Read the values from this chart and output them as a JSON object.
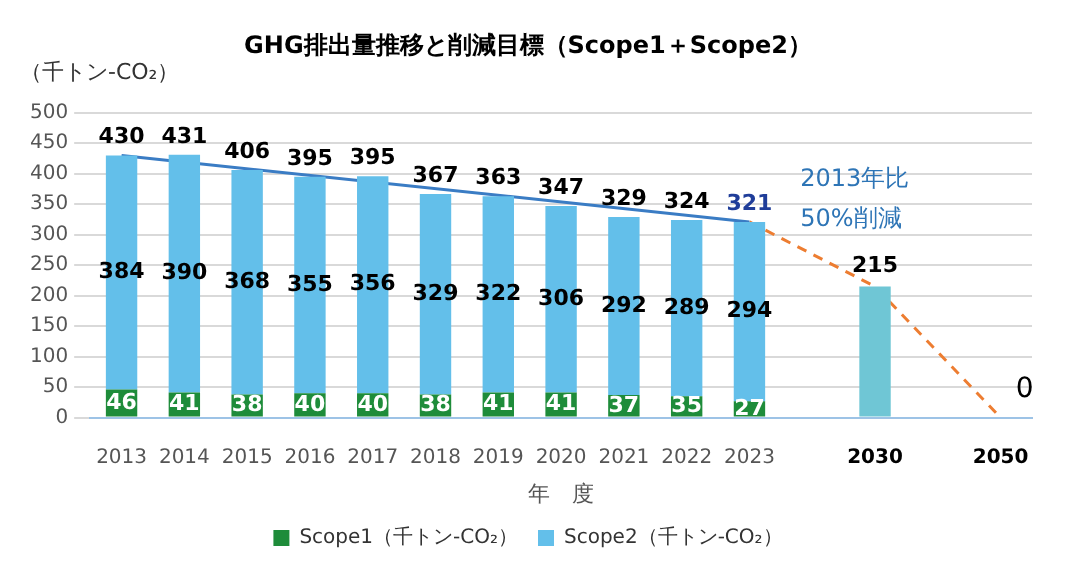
{
  "chart_data": {
    "type": "bar",
    "title": "GHG排出量推移と削減目標（Scope1＋Scope2）",
    "ylabel": "（千トン-CO₂）",
    "xlabel": "年　度",
    "categories": [
      "2013",
      "2014",
      "2015",
      "2016",
      "2017",
      "2018",
      "2019",
      "2020",
      "2021",
      "2022",
      "2023",
      null,
      "2030",
      null,
      "2050"
    ],
    "stacked": true,
    "ylim": [
      0,
      500
    ],
    "yticks": [
      0,
      50,
      100,
      150,
      200,
      250,
      300,
      350,
      400,
      450,
      500
    ],
    "grid": "y",
    "legend": "bottom",
    "marker": "none",
    "series": [
      {
        "name": "Scope1（千トン-CO₂）",
        "color": "#1e8c3a",
        "values": [
          46,
          41,
          38,
          40,
          40,
          38,
          41,
          41,
          37,
          35,
          27,
          null,
          null,
          null,
          null
        ],
        "value_labels": [
          "46",
          "41",
          "38",
          "40",
          "40",
          "38",
          "41",
          "41",
          "37",
          "35",
          "27",
          null,
          null,
          null,
          null
        ]
      },
      {
        "name": "Scope2（千トン-CO₂）",
        "color": "#63bfea",
        "values": [
          384,
          390,
          368,
          355,
          356,
          329,
          322,
          306,
          292,
          289,
          294,
          null,
          null,
          null,
          null
        ],
        "value_labels": [
          "384",
          "390",
          "368",
          "355",
          "356",
          "329",
          "322",
          "306",
          "292",
          "289",
          "294",
          null,
          null,
          null,
          null
        ]
      },
      {
        "color": "#6fc6d5",
        "values": [
          null,
          null,
          null,
          null,
          null,
          null,
          null,
          null,
          null,
          null,
          null,
          null,
          215,
          null,
          null
        ],
        "value_labels": [
          null,
          null,
          null,
          null,
          null,
          null,
          null,
          null,
          null,
          null,
          null,
          null,
          "215",
          null,
          null
        ]
      },
      {
        "type": "line",
        "color": "#3a7cc4",
        "values": [
          430,
          null,
          null,
          null,
          null,
          null,
          null,
          null,
          null,
          null,
          321,
          null,
          null,
          null,
          null
        ]
      },
      {
        "type": "line",
        "color": "#ed7d31",
        "line_style": "dashed",
        "values": [
          null,
          null,
          null,
          null,
          null,
          null,
          null,
          null,
          null,
          null,
          321,
          null,
          215,
          null,
          0
        ],
        "value_labels": [
          null,
          null,
          null,
          null,
          null,
          null,
          null,
          null,
          null,
          null,
          null,
          null,
          null,
          null,
          "0"
        ]
      }
    ],
    "totals": [
      "430",
      "431",
      "406",
      "395",
      "395",
      "367",
      "363",
      "347",
      "329",
      "324",
      "321",
      null,
      null,
      null,
      null
    ],
    "annotations": [
      "2013年比",
      "50%削減"
    ]
  }
}
